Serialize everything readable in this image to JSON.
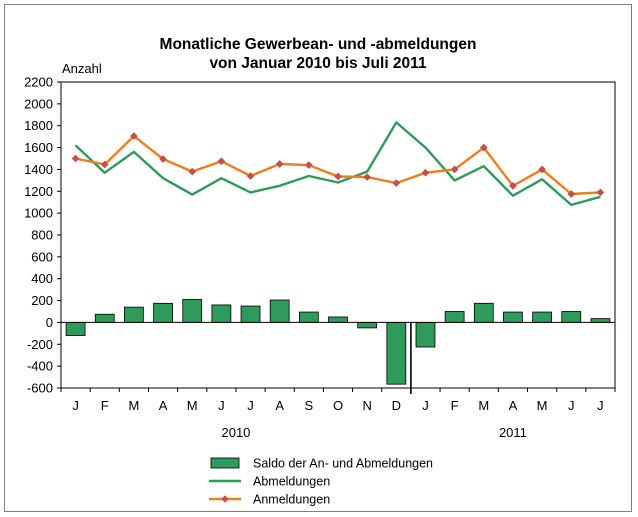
{
  "chart_data": {
    "type": "bar+line",
    "title_line1": "Monatliche Gewerbean- und -abmeldungen",
    "title_line2": "von Januar 2010 bis Juli 2011",
    "ylabel": "Anzahl",
    "ylim": [
      -600,
      2200
    ],
    "yticks": [
      2200,
      2000,
      1800,
      1600,
      1400,
      1200,
      1000,
      800,
      600,
      400,
      200,
      0,
      -200,
      -400,
      -600
    ],
    "categories": [
      "J",
      "F",
      "M",
      "A",
      "M",
      "J",
      "J",
      "A",
      "S",
      "O",
      "N",
      "D",
      "J",
      "F",
      "M",
      "A",
      "M",
      "J",
      "J"
    ],
    "year_labels": [
      {
        "label": "2010",
        "category_index": 5.5
      },
      {
        "label": "2011",
        "category_index": 15
      }
    ],
    "year_separator_after_index": 11,
    "grid": false,
    "series": [
      {
        "name": "Saldo der An- und Abmeldungen",
        "kind": "bar",
        "color": "#2e9a5c",
        "values": [
          -120,
          75,
          140,
          175,
          210,
          160,
          150,
          205,
          95,
          50,
          -50,
          -565,
          -225,
          100,
          175,
          95,
          95,
          100,
          35
        ]
      },
      {
        "name": "Abmeldungen",
        "kind": "line",
        "color": "#2e9a5c",
        "values": [
          1620,
          1370,
          1560,
          1320,
          1170,
          1320,
          1190,
          1250,
          1340,
          1280,
          1380,
          1830,
          1600,
          1300,
          1430,
          1160,
          1310,
          1075,
          1150
        ]
      },
      {
        "name": "Anmeldungen",
        "kind": "line",
        "color": "#f07d1a",
        "marker_color": "#c0504d",
        "values": [
          1500,
          1445,
          1705,
          1495,
          1380,
          1475,
          1340,
          1450,
          1440,
          1335,
          1330,
          1275,
          1370,
          1400,
          1600,
          1250,
          1400,
          1175,
          1190
        ]
      }
    ],
    "legend_placement": "bottom-center"
  }
}
